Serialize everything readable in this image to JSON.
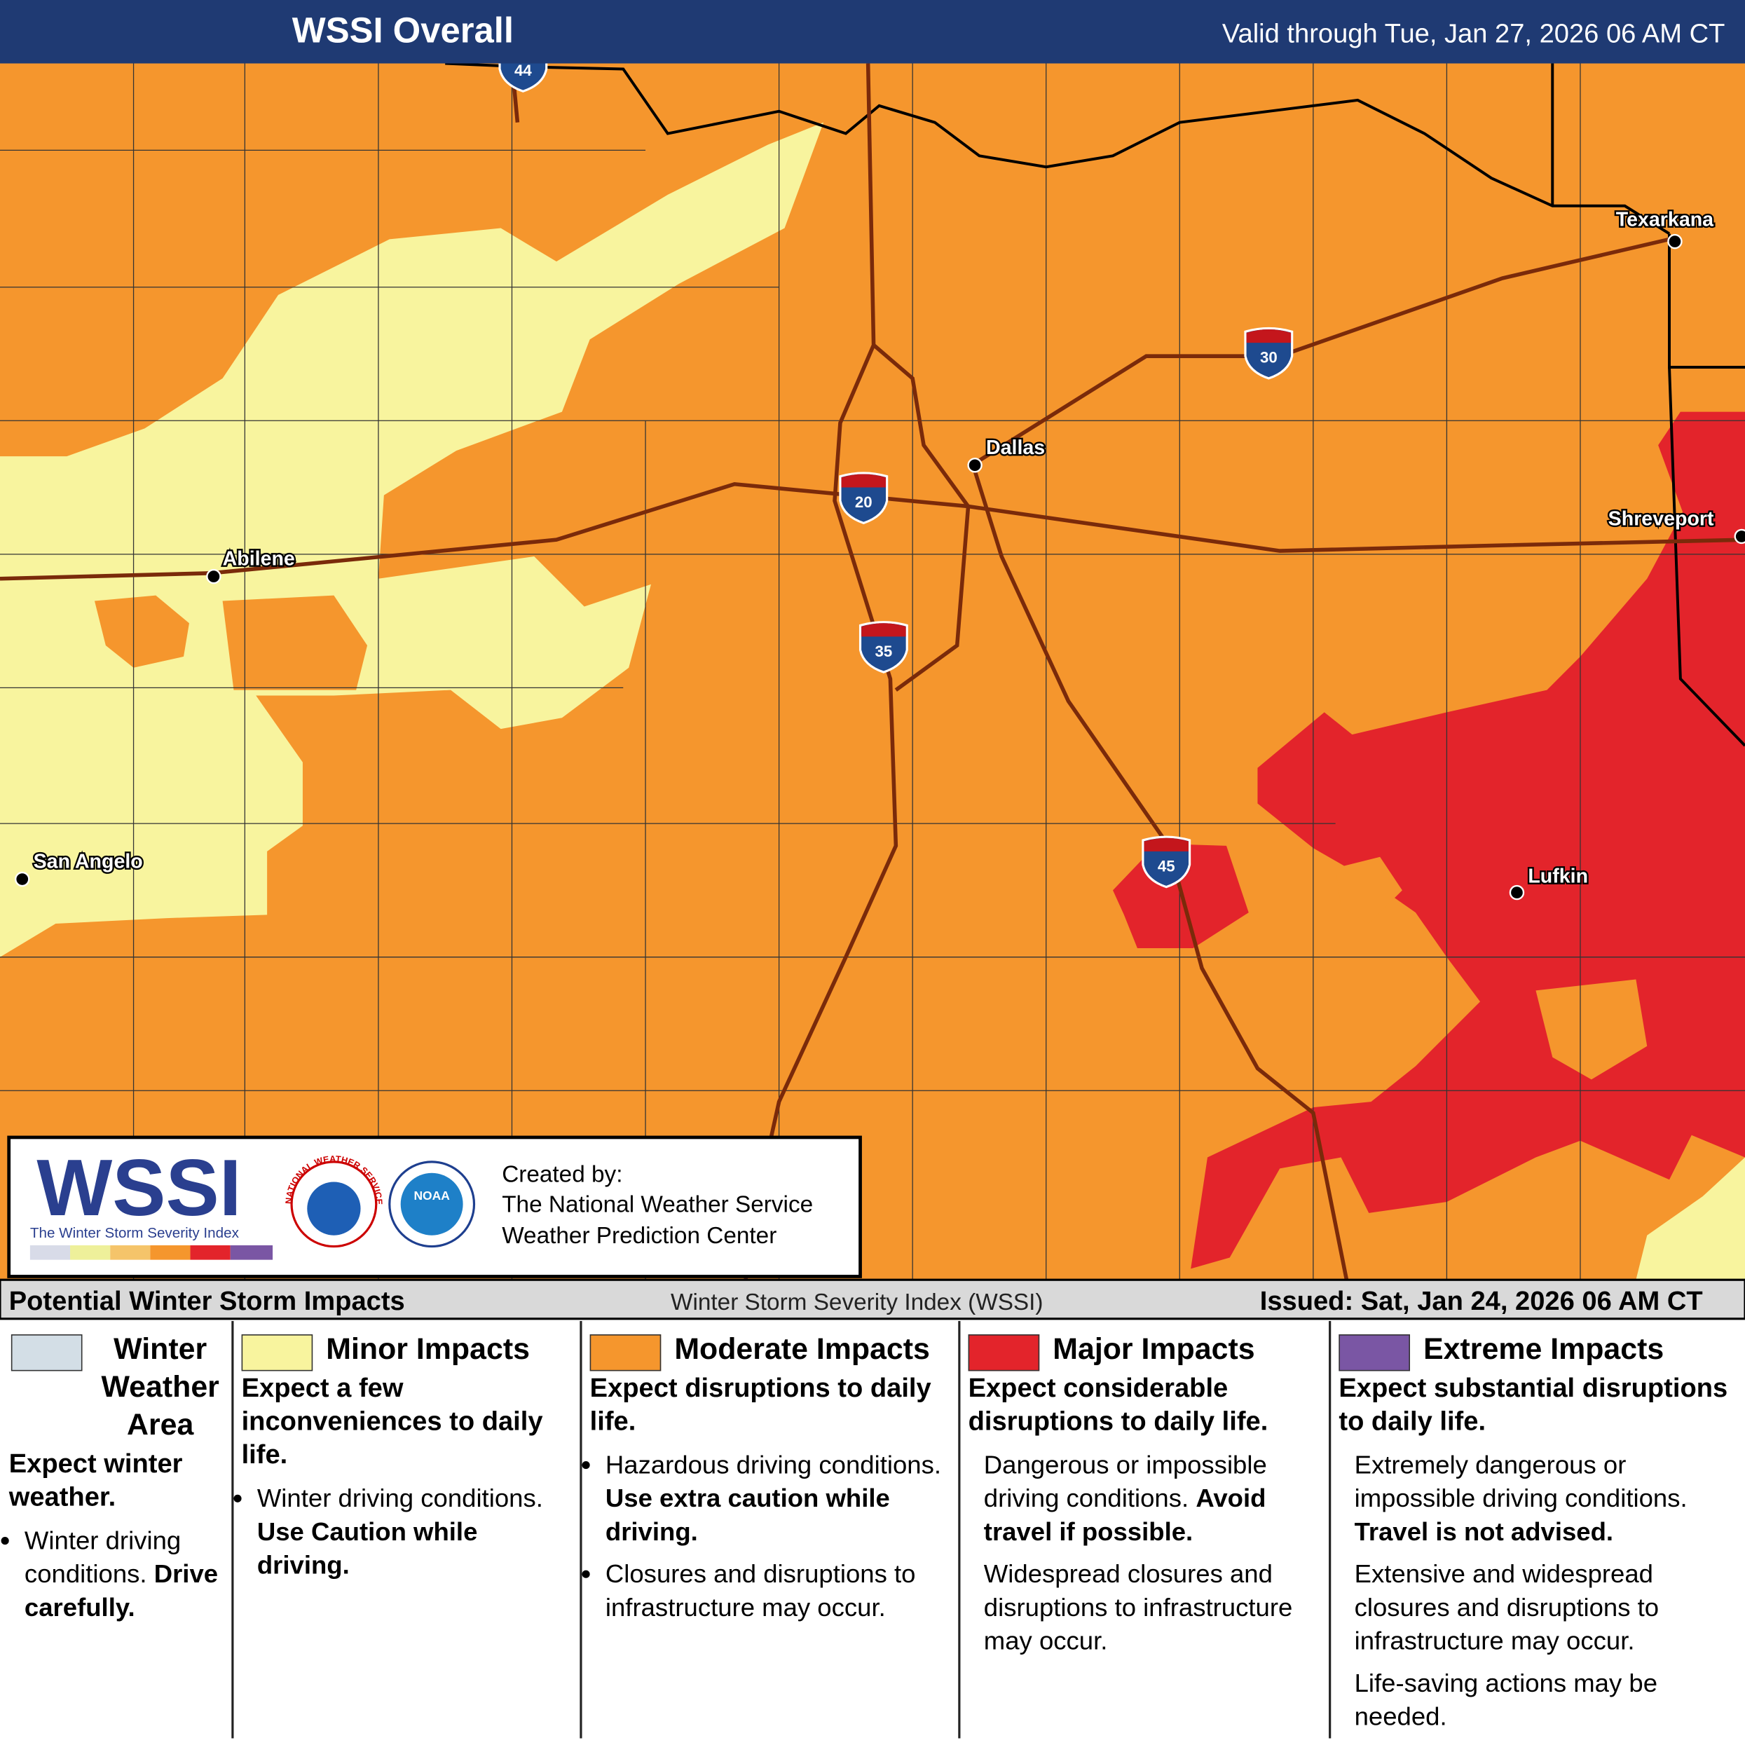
{
  "header": {
    "title": "WSSI Overall",
    "valid": "Valid through Tue, Jan 27, 2026 06 AM CT"
  },
  "map": {
    "cities": [
      "Texarkana",
      "Dallas",
      "Shreveport",
      "Abilene",
      "San Angelo",
      "Lufkin"
    ],
    "interstates": [
      "44",
      "30",
      "20",
      "35",
      "45"
    ]
  },
  "credits": {
    "logo": "WSSI",
    "logo_subtitle": "The Winter Storm Severity Index",
    "nws": "NATIONAL WEATHER SERVICE",
    "noaa": "NOAA",
    "created_by": "Created by:",
    "org1": "The National Weather Service",
    "org2": "Weather Prediction Center"
  },
  "legend": {
    "title": "Potential Winter Storm Impacts",
    "center": "Winter Storm Severity Index (WSSI)",
    "issued": "Issued: Sat, Jan 24, 2026 06 AM CT",
    "categories": [
      {
        "name": "Winter Weather Area",
        "summary": "Expect winter weather.",
        "details": [
          {
            "text": "Winter driving conditions.",
            "emphasis": "Drive carefully."
          }
        ]
      },
      {
        "name": "Minor Impacts",
        "summary": "Expect a few inconveniences to daily life.",
        "details": [
          {
            "text": "Winter driving conditions.",
            "emphasis": "Use Caution while driving."
          }
        ]
      },
      {
        "name": "Moderate Impacts",
        "summary": "Expect disruptions to daily life.",
        "details": [
          {
            "text": "Hazardous driving conditions.",
            "emphasis": "Use extra caution while driving."
          },
          {
            "text": "Closures and disruptions to infrastructure may occur."
          }
        ]
      },
      {
        "name": "Major Impacts",
        "summary": "Expect considerable disruptions to daily life.",
        "details": [
          {
            "text": "Dangerous or impossible driving conditions.",
            "emphasis": "Avoid travel if possible."
          },
          {
            "text": "Widespread closures and disruptions to infrastructure may occur."
          }
        ]
      },
      {
        "name": "Extreme Impacts",
        "summary": "Expect substantial disruptions to daily life.",
        "details": [
          {
            "text": "Extremely dangerous or impossible driving conditions.",
            "emphasis": "Travel is not advised."
          },
          {
            "text": "Extensive and widespread closures and disruptions to infrastructure may occur."
          },
          {
            "text": "Life-saving actions may be needed."
          }
        ]
      }
    ]
  }
}
